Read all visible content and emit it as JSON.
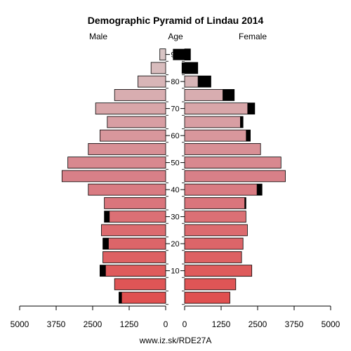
{
  "chart_data": {
    "type": "bar",
    "title": "Demographic Pyramid of Lindau 2014",
    "male_label": "Male",
    "age_label": "Age",
    "female_label": "Female",
    "footer": "www.iz.sk/RDE27A",
    "age_groups": [
      "0-4",
      "5-9",
      "10-14",
      "15-19",
      "20-24",
      "25-29",
      "30-34",
      "35-39",
      "40-44",
      "45-49",
      "50-54",
      "55-59",
      "60-64",
      "65-69",
      "70-74",
      "75-79",
      "80-84",
      "85-89",
      "90+"
    ],
    "age_ticks": [
      10,
      20,
      30,
      40,
      50,
      60,
      70,
      80,
      90
    ],
    "x_ticks_male": [
      "5000",
      "3750",
      "2500",
      "1250",
      "0"
    ],
    "x_ticks_female": [
      "0",
      "1250",
      "2500",
      "3750",
      "5000"
    ],
    "x_max": 5000,
    "series": [
      {
        "name": "Male",
        "values": [
          1600,
          1750,
          2250,
          2150,
          2150,
          2200,
          2100,
          2100,
          2650,
          3550,
          3350,
          2650,
          2250,
          2000,
          2400,
          1750,
          950,
          500,
          200
        ],
        "foreign": [
          100,
          0,
          200,
          0,
          200,
          0,
          180,
          0,
          0,
          0,
          0,
          0,
          0,
          0,
          0,
          0,
          0,
          0,
          0
        ]
      },
      {
        "name": "Female",
        "values": [
          1550,
          1750,
          2300,
          1950,
          2000,
          2150,
          2100,
          2100,
          2650,
          3450,
          3300,
          2600,
          2250,
          2000,
          2400,
          1700,
          900,
          450,
          200
        ],
        "foreign": [
          0,
          0,
          0,
          0,
          0,
          0,
          0,
          50,
          180,
          0,
          0,
          0,
          150,
          100,
          250,
          400,
          450,
          550,
          600
        ]
      }
    ],
    "colors": {
      "young": "#e05050",
      "mid": "#d88088",
      "old": "#d8c4c4",
      "foreign": "#000000"
    }
  }
}
